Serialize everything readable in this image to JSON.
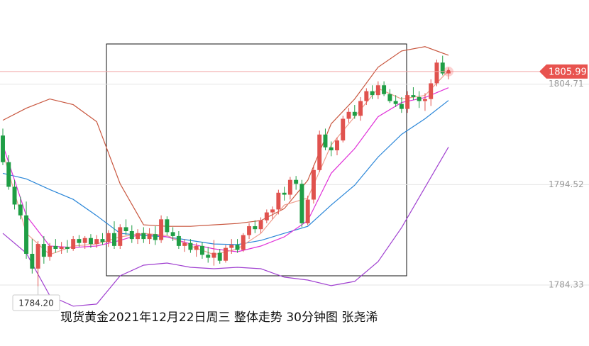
{
  "chart_data": {
    "type": "candlestick",
    "caption": "现货黄金2021年12月22日周三 整体走势  30分钟图  张尧浠",
    "open": [
      1799.5,
      1796.8,
      1794.3,
      1792.5,
      1791.4,
      1787.5,
      1786.0,
      1788.5,
      1787.2,
      1788.3,
      1788.0,
      1788.2,
      1788.0,
      1789.0,
      1788.6,
      1789.1,
      1788.5,
      1789.0,
      1788.7,
      1789.6,
      1788.3,
      1790.2,
      1789.8,
      1789.0,
      1789.6,
      1789.0,
      1789.5,
      1788.9,
      1791.0,
      1789.7,
      1789.3,
      1788.3,
      1788.6,
      1787.9,
      1788.3,
      1787.4,
      1787.1,
      1787.6,
      1786.8,
      1788.1,
      1788.4,
      1787.9,
      1789.4,
      1790.3,
      1790.0,
      1790.9,
      1791.7,
      1792.0,
      1793.7,
      1793.5,
      1795.0,
      1794.6,
      1790.6,
      1793.0,
      1796.0,
      1799.6,
      1798.3,
      1798.0,
      1799.0,
      1801.2,
      1801.9,
      1801.5,
      1803.0,
      1804.0,
      1803.6,
      1804.6,
      1803.7,
      1803.0,
      1802.7,
      1802.2,
      1803.6,
      1803.4,
      1803.0,
      1803.2,
      1804.8,
      1806.9,
      1805.8
    ],
    "high": [
      1800.2,
      1797.5,
      1795.0,
      1793.3,
      1792.8,
      1789.0,
      1788.8,
      1789.3,
      1788.6,
      1789.0,
      1788.7,
      1788.9,
      1789.3,
      1789.4,
      1789.3,
      1789.5,
      1789.4,
      1789.6,
      1789.9,
      1790.8,
      1790.5,
      1791.0,
      1790.4,
      1790.0,
      1790.2,
      1790.1,
      1790.3,
      1791.4,
      1791.3,
      1790.2,
      1789.8,
      1789.0,
      1789.0,
      1788.6,
      1788.7,
      1788.2,
      1788.9,
      1788.0,
      1788.4,
      1789.0,
      1789.0,
      1789.6,
      1790.6,
      1790.9,
      1791.2,
      1792.0,
      1792.3,
      1794.0,
      1794.3,
      1795.3,
      1795.4,
      1795.0,
      1793.4,
      1796.5,
      1800.0,
      1800.2,
      1798.9,
      1799.3,
      1801.5,
      1802.3,
      1802.6,
      1803.4,
      1804.3,
      1804.6,
      1805.0,
      1805.0,
      1804.2,
      1803.6,
      1803.4,
      1804.0,
      1804.4,
      1804.0,
      1803.8,
      1805.2,
      1807.2,
      1807.6,
      1806.4
    ],
    "low": [
      1796.5,
      1794.0,
      1792.0,
      1791.0,
      1787.0,
      1785.5,
      1784.2,
      1786.5,
      1786.8,
      1787.6,
      1787.5,
      1787.6,
      1787.8,
      1788.2,
      1788.0,
      1788.1,
      1788.1,
      1788.4,
      1788.2,
      1788.0,
      1788.0,
      1789.4,
      1788.6,
      1788.5,
      1788.6,
      1788.5,
      1788.4,
      1788.6,
      1789.4,
      1788.8,
      1788.0,
      1787.7,
      1787.6,
      1787.2,
      1787.0,
      1786.6,
      1786.3,
      1786.5,
      1786.6,
      1787.5,
      1787.6,
      1787.7,
      1789.0,
      1789.6,
      1789.6,
      1790.6,
      1791.0,
      1791.5,
      1792.9,
      1793.0,
      1794.0,
      1790.2,
      1790.4,
      1792.6,
      1795.8,
      1798.0,
      1797.4,
      1797.5,
      1798.8,
      1800.8,
      1801.2,
      1801.0,
      1802.6,
      1803.2,
      1803.2,
      1803.5,
      1802.8,
      1802.4,
      1801.8,
      1801.8,
      1803.1,
      1802.3,
      1802.0,
      1802.5,
      1804.5,
      1805.6,
      1805.2
    ],
    "close": [
      1796.8,
      1794.3,
      1792.5,
      1791.4,
      1787.5,
      1786.0,
      1788.5,
      1787.2,
      1788.3,
      1788.0,
      1788.2,
      1788.0,
      1789.0,
      1788.6,
      1789.1,
      1788.5,
      1789.0,
      1788.7,
      1789.6,
      1788.3,
      1790.2,
      1789.8,
      1789.0,
      1789.6,
      1789.0,
      1789.5,
      1788.9,
      1791.0,
      1789.7,
      1789.3,
      1788.3,
      1788.6,
      1787.9,
      1788.3,
      1787.4,
      1787.1,
      1787.6,
      1786.8,
      1788.1,
      1788.4,
      1787.9,
      1789.4,
      1790.3,
      1790.0,
      1790.9,
      1791.7,
      1792.0,
      1793.7,
      1793.5,
      1795.0,
      1794.6,
      1790.6,
      1793.0,
      1796.0,
      1799.6,
      1798.3,
      1798.0,
      1799.0,
      1801.2,
      1801.9,
      1801.5,
      1803.0,
      1804.0,
      1803.6,
      1804.6,
      1803.7,
      1803.0,
      1802.7,
      1802.2,
      1803.6,
      1803.4,
      1803.0,
      1803.2,
      1804.8,
      1806.9,
      1805.8,
      1805.99
    ],
    "up_color": "#e0524e",
    "down_color": "#1f9e45",
    "overlay_x": [
      0,
      4,
      8,
      12,
      16,
      20,
      24,
      28,
      32,
      36,
      40,
      44,
      48,
      52,
      56,
      60,
      64,
      68,
      72,
      76
    ],
    "overlays": [
      {
        "color": "#c8553d",
        "values": [
          1801.05,
          1802.27,
          1803.21,
          1802.63,
          1800.91,
          1794.6,
          1790.44,
          1790.29,
          1790.29,
          1790.44,
          1790.58,
          1790.87,
          1792.09,
          1794.96,
          1800.69,
          1803.21,
          1806.43,
          1808.08,
          1808.52,
          1807.65
        ]
      },
      {
        "color": "#a040d0",
        "values": [
          1789.58,
          1787.57,
          1783.26,
          1782.19,
          1782.4,
          1785.27,
          1786.35,
          1786.56,
          1786.13,
          1785.99,
          1786.13,
          1785.99,
          1785.13,
          1784.84,
          1784.27,
          1784.7,
          1786.71,
          1790.15,
          1794.24,
          1798.33
        ]
      },
      {
        "color": "#2a86d8",
        "values": [
          1795.67,
          1795.1,
          1794.02,
          1793.02,
          1791.37,
          1789.58,
          1789.36,
          1789.22,
          1788.86,
          1788.5,
          1788.43,
          1788.86,
          1789.58,
          1790.29,
          1792.45,
          1794.46,
          1797.32,
          1799.62,
          1801.2,
          1803.06
        ]
      },
      {
        "color": "#e030d8",
        "values": [
          1798.54,
          1791.37,
          1788.29,
          1788.14,
          1788.29,
          1788.86,
          1789.58,
          1789.22,
          1788.5,
          1788.0,
          1787.71,
          1788.29,
          1789.22,
          1790.87,
          1795.67,
          1798.18,
          1801.41,
          1802.85,
          1803.35,
          1804.35
        ]
      },
      {
        "color": "#f0a090",
        "values": [
          1797.83,
          1789.58,
          1787.42,
          1788.29,
          1788.5,
          1789.22,
          1789.58,
          1789.36,
          1788.29,
          1787.42,
          1787.99,
          1789.58,
          1792.45,
          1793.17,
          1798.54,
          1801.41,
          1804.28,
          1803.21,
          1803.57,
          1806.08
        ]
      }
    ],
    "ylim": [
      1781.6,
      1813.25
    ],
    "yticks": [
      1784.33,
      1794.52,
      1804.71
    ],
    "grid": true,
    "last_price": 1805.99,
    "low_annotation": {
      "value": 1784.2,
      "label": "1784.20"
    }
  }
}
